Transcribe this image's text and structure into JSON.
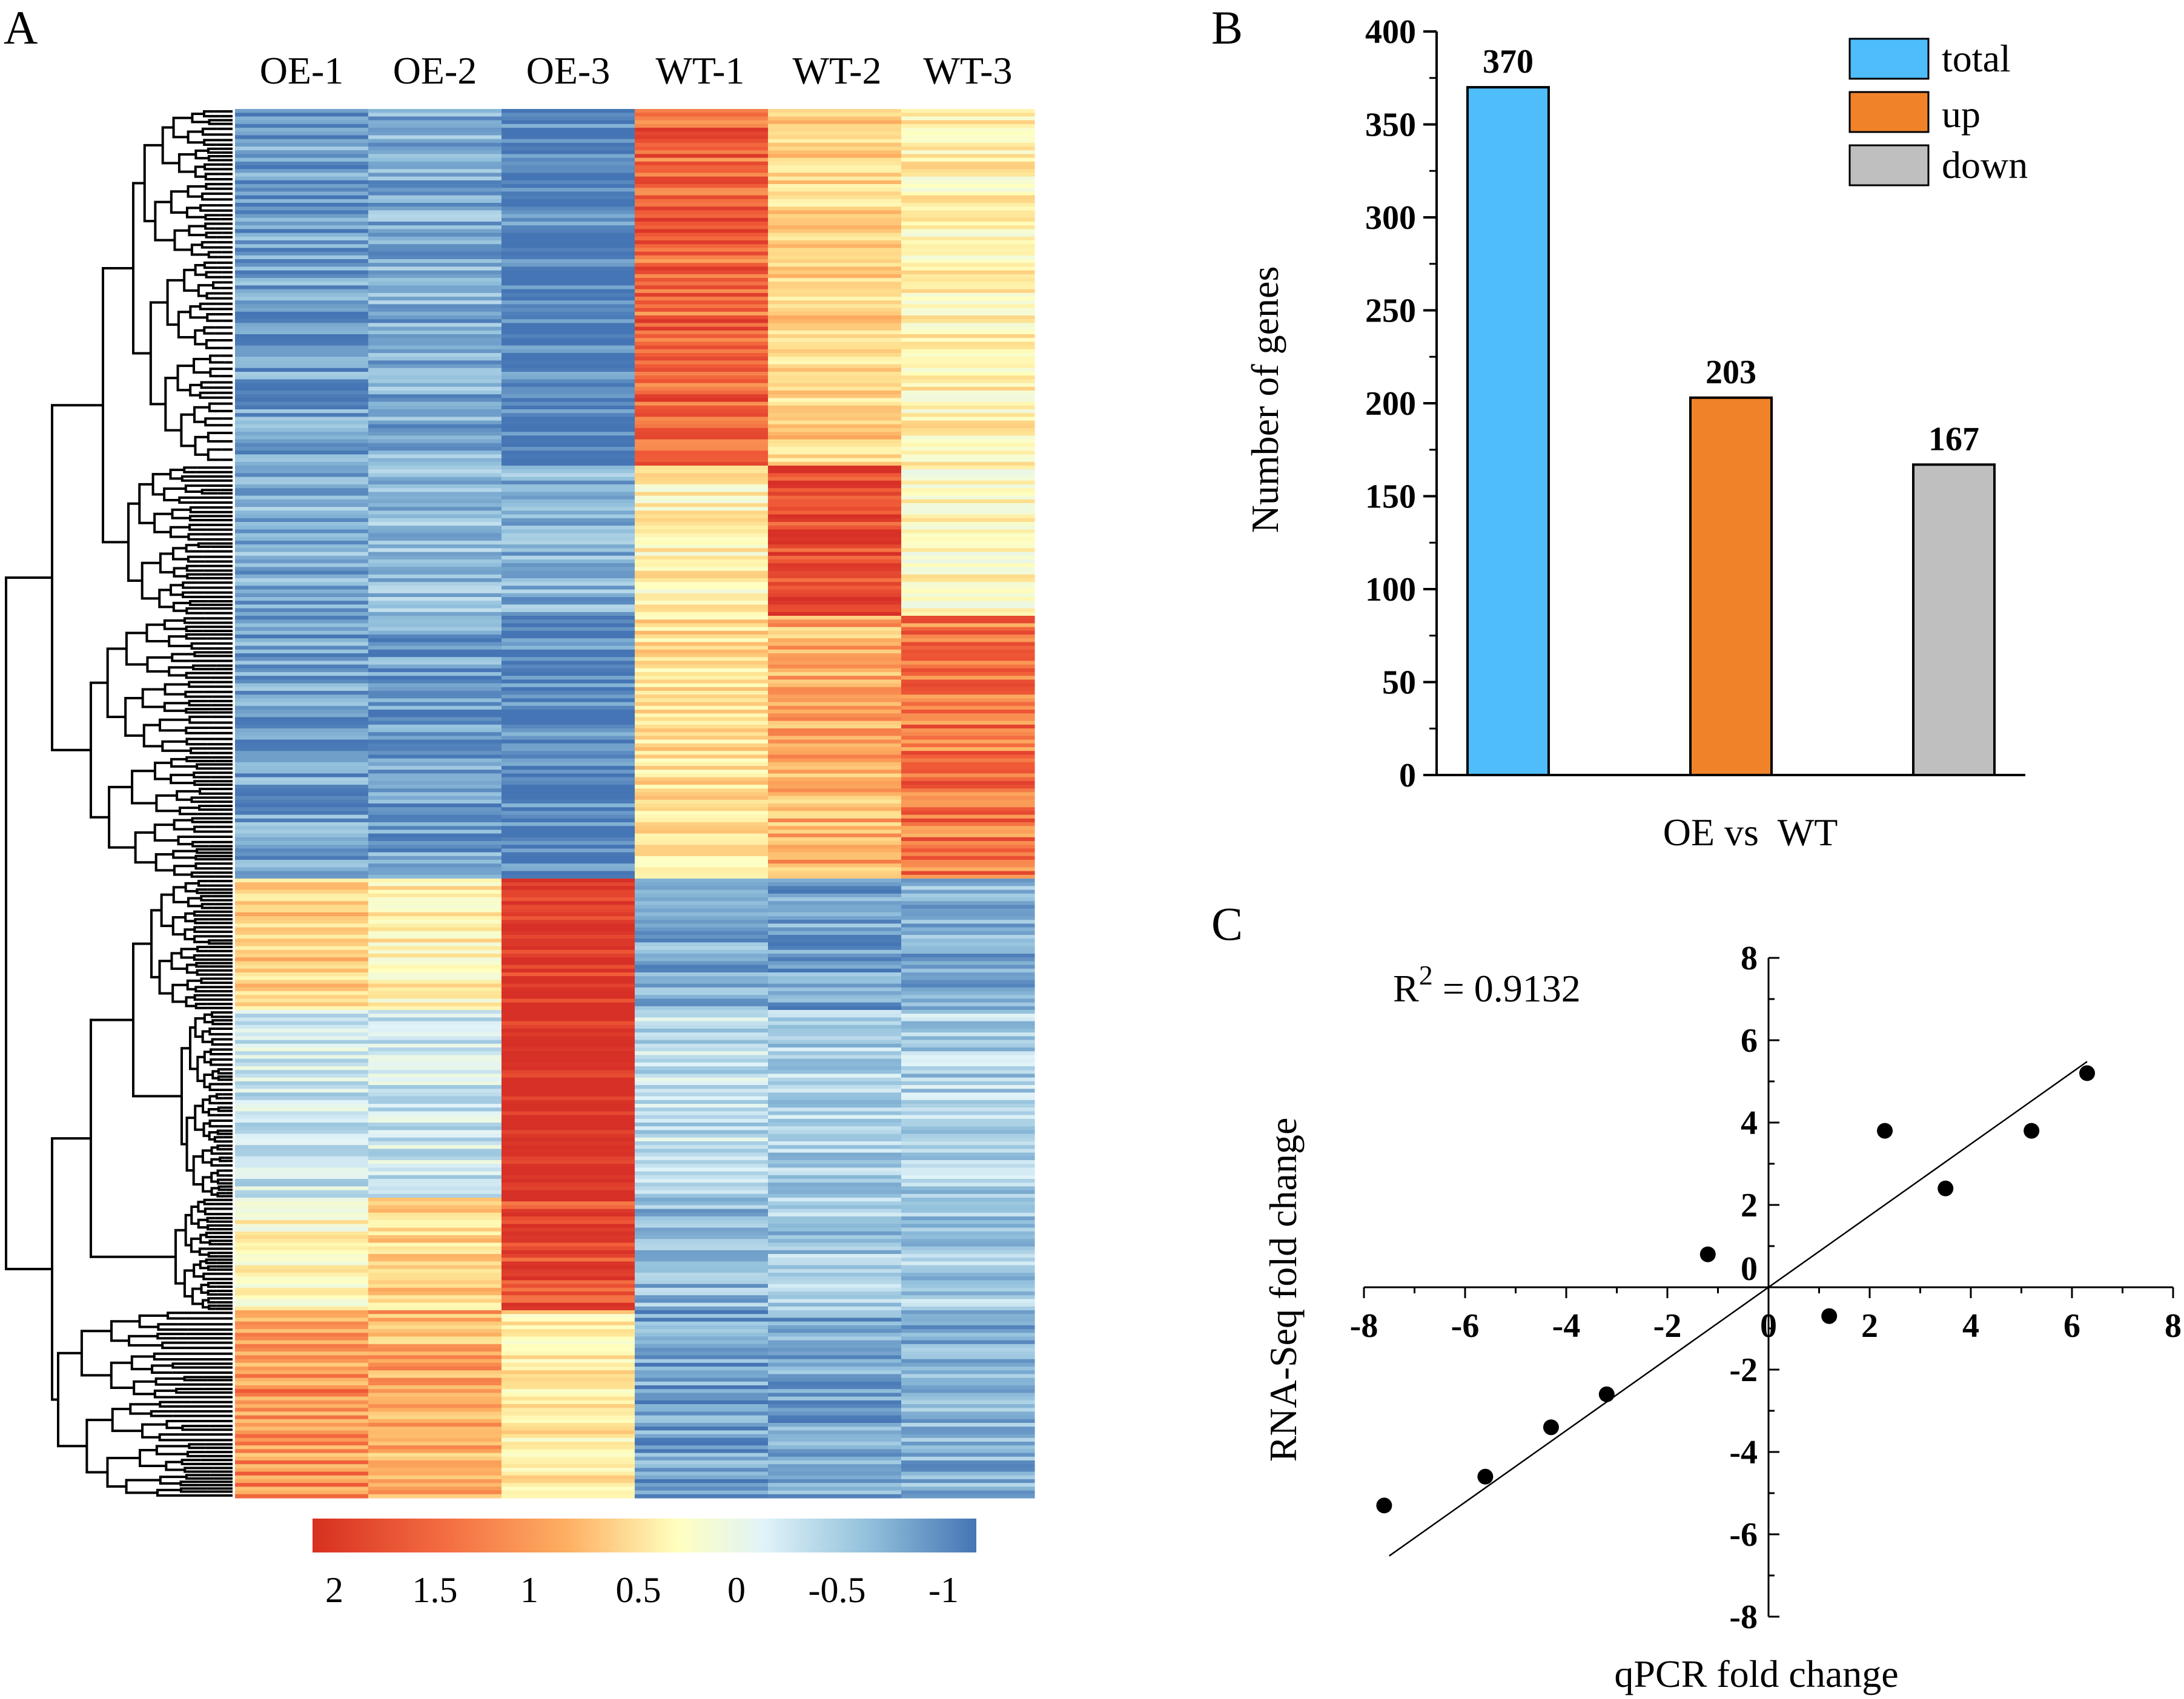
{
  "panels": {
    "A": "A",
    "B": "B",
    "C": "C"
  },
  "chart_data": [
    {
      "type": "heatmap",
      "panel": "A",
      "title": "",
      "columns": [
        "OE-1",
        "OE-2",
        "OE-3",
        "WT-1",
        "WT-2",
        "WT-3"
      ],
      "row_count": 370,
      "dendrogram": "rows",
      "clusters": [
        {
          "rows": 95,
          "values": [
            -0.7,
            -0.6,
            -0.9,
            1.6,
            0.9,
            0.6
          ]
        },
        {
          "rows": 40,
          "values": [
            -0.6,
            -0.5,
            -0.6,
            0.6,
            1.8,
            0.5
          ]
        },
        {
          "rows": 70,
          "values": [
            -0.7,
            -0.7,
            -0.9,
            0.8,
            1.1,
            1.5
          ]
        },
        {
          "rows": 35,
          "values": [
            0.9,
            0.6,
            1.9,
            -0.6,
            -0.7,
            -0.6
          ]
        },
        {
          "rows": 50,
          "values": [
            -0.1,
            -0.1,
            2.0,
            -0.2,
            -0.3,
            -0.3
          ]
        },
        {
          "rows": 30,
          "values": [
            0.5,
            0.9,
            1.8,
            -0.5,
            -0.4,
            -0.4
          ]
        },
        {
          "rows": 50,
          "values": [
            1.3,
            1.1,
            0.7,
            -0.7,
            -0.7,
            -0.6
          ]
        }
      ],
      "colorbar": {
        "ticks": [
          "2",
          "1.5",
          "1",
          "0.5",
          "0",
          "-0.5",
          "-1"
        ],
        "range": [
          2,
          -1
        ],
        "colors": {
          "high": "#d7301f",
          "mid_high": "#fdae61",
          "mid": "#ffffbf",
          "low_mid": "#e0f3f8",
          "low": "#4575b4"
        }
      }
    },
    {
      "type": "bar",
      "panel": "B",
      "title": "",
      "categories": [
        "total",
        "up",
        "down"
      ],
      "values": [
        370,
        203,
        167
      ],
      "colors": [
        "#4ebdfa",
        "#f0832a",
        "#bfbfbf"
      ],
      "xlabel": "OE vs  WT",
      "ylabel": "Number of genes",
      "ylim": [
        0,
        400
      ],
      "yticks": [
        "0",
        "50",
        "100",
        "150",
        "200",
        "250",
        "300",
        "350",
        "400"
      ],
      "legend": {
        "position": "top-right",
        "entries": [
          "total",
          "up",
          "down"
        ]
      }
    },
    {
      "type": "scatter",
      "panel": "C",
      "title": "",
      "annotation": "R",
      "annotation_sup": "2",
      "annotation_tail": " = 0.9132",
      "xlabel": "qPCR fold change",
      "ylabel": "RNA-Seq fold change",
      "xlim": [
        -8,
        8
      ],
      "ylim": [
        -8,
        8
      ],
      "xticks": [
        "-8",
        "-6",
        "-4",
        "-2",
        "0",
        "2",
        "4",
        "6",
        "8"
      ],
      "yticks": [
        "8",
        "6",
        "4",
        "2",
        "0",
        "-2",
        "-4",
        "-6",
        "-8"
      ],
      "points": [
        {
          "x": -7.6,
          "y": -5.3
        },
        {
          "x": -5.6,
          "y": -4.6
        },
        {
          "x": -4.3,
          "y": -3.4
        },
        {
          "x": -3.2,
          "y": -2.6
        },
        {
          "x": -1.2,
          "y": 0.8
        },
        {
          "x": 1.2,
          "y": -0.7
        },
        {
          "x": 2.3,
          "y": 3.8
        },
        {
          "x": 3.5,
          "y": 2.4
        },
        {
          "x": 5.2,
          "y": 3.8
        },
        {
          "x": 6.3,
          "y": 5.2
        }
      ],
      "fit": {
        "slope": 0.87,
        "intercept": 0.0
      }
    }
  ]
}
